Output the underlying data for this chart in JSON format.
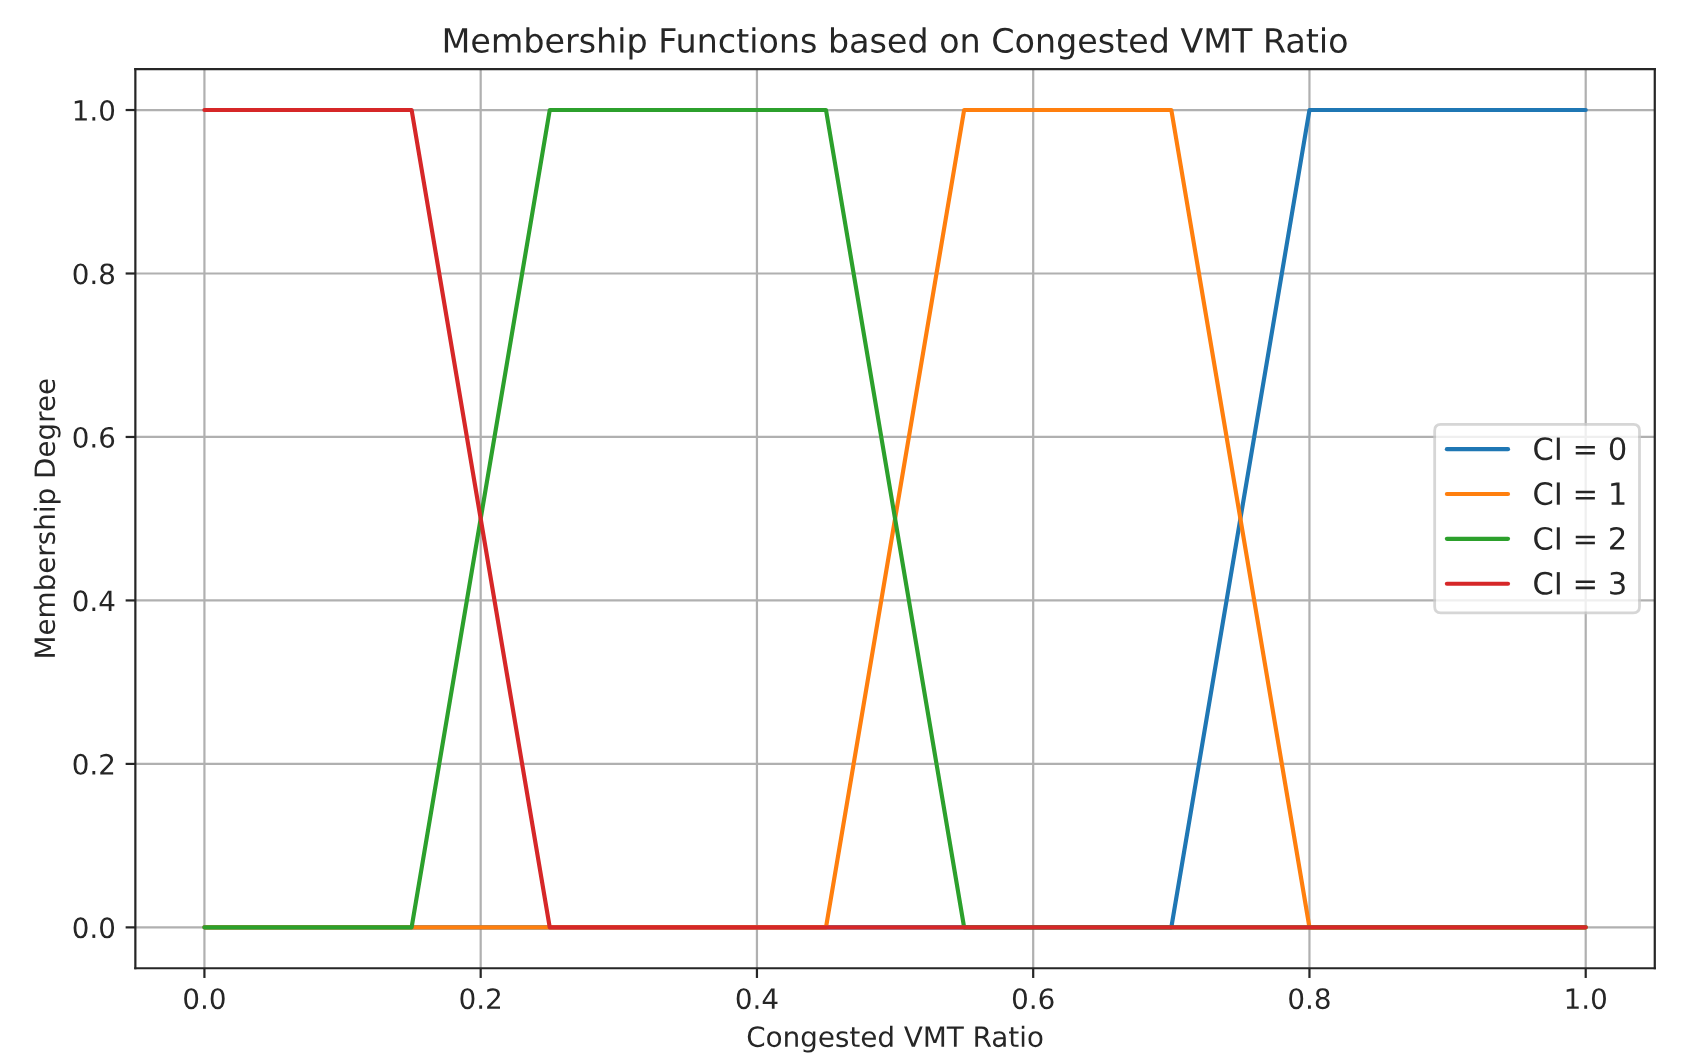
{
  "chart_data": {
    "type": "line",
    "title": "Membership Functions based on Congested VMT Ratio",
    "xlabel": "Congested VMT Ratio",
    "ylabel": "Membership Degree",
    "series": [
      {
        "name": "CI = 0",
        "color": "#1f77b4",
        "x": [
          0.0,
          0.7,
          0.8,
          1.0
        ],
        "values": [
          0,
          0,
          1,
          1
        ]
      },
      {
        "name": "CI = 1",
        "color": "#ff7f0e",
        "x": [
          0.0,
          0.45,
          0.55,
          0.7,
          0.8,
          1.0
        ],
        "values": [
          0,
          0,
          1,
          1,
          0,
          0
        ]
      },
      {
        "name": "CI = 2",
        "color": "#2ca02c",
        "x": [
          0.0,
          0.15,
          0.25,
          0.45,
          0.55,
          1.0
        ],
        "values": [
          0,
          0,
          1,
          1,
          0,
          0
        ]
      },
      {
        "name": "CI = 3",
        "color": "#d62728",
        "x": [
          0.0,
          0.15,
          0.25,
          1.0
        ],
        "values": [
          1,
          1,
          0,
          0
        ]
      }
    ],
    "xlim": [
      -0.05,
      1.05
    ],
    "ylim": [
      -0.05,
      1.05
    ],
    "xticks": [
      {
        "value": 0,
        "label": "0.0"
      },
      0.2,
      0.4,
      0.6,
      0.8,
      {
        "value": 1,
        "label": "1.0"
      }
    ],
    "yticks": [
      {
        "value": 0,
        "label": "0.0"
      },
      0.2,
      0.4,
      0.6,
      0.8,
      {
        "value": 1,
        "label": "1.0"
      }
    ],
    "grid": true,
    "legend": "center right",
    "line_style": "solid",
    "marker": "none"
  }
}
